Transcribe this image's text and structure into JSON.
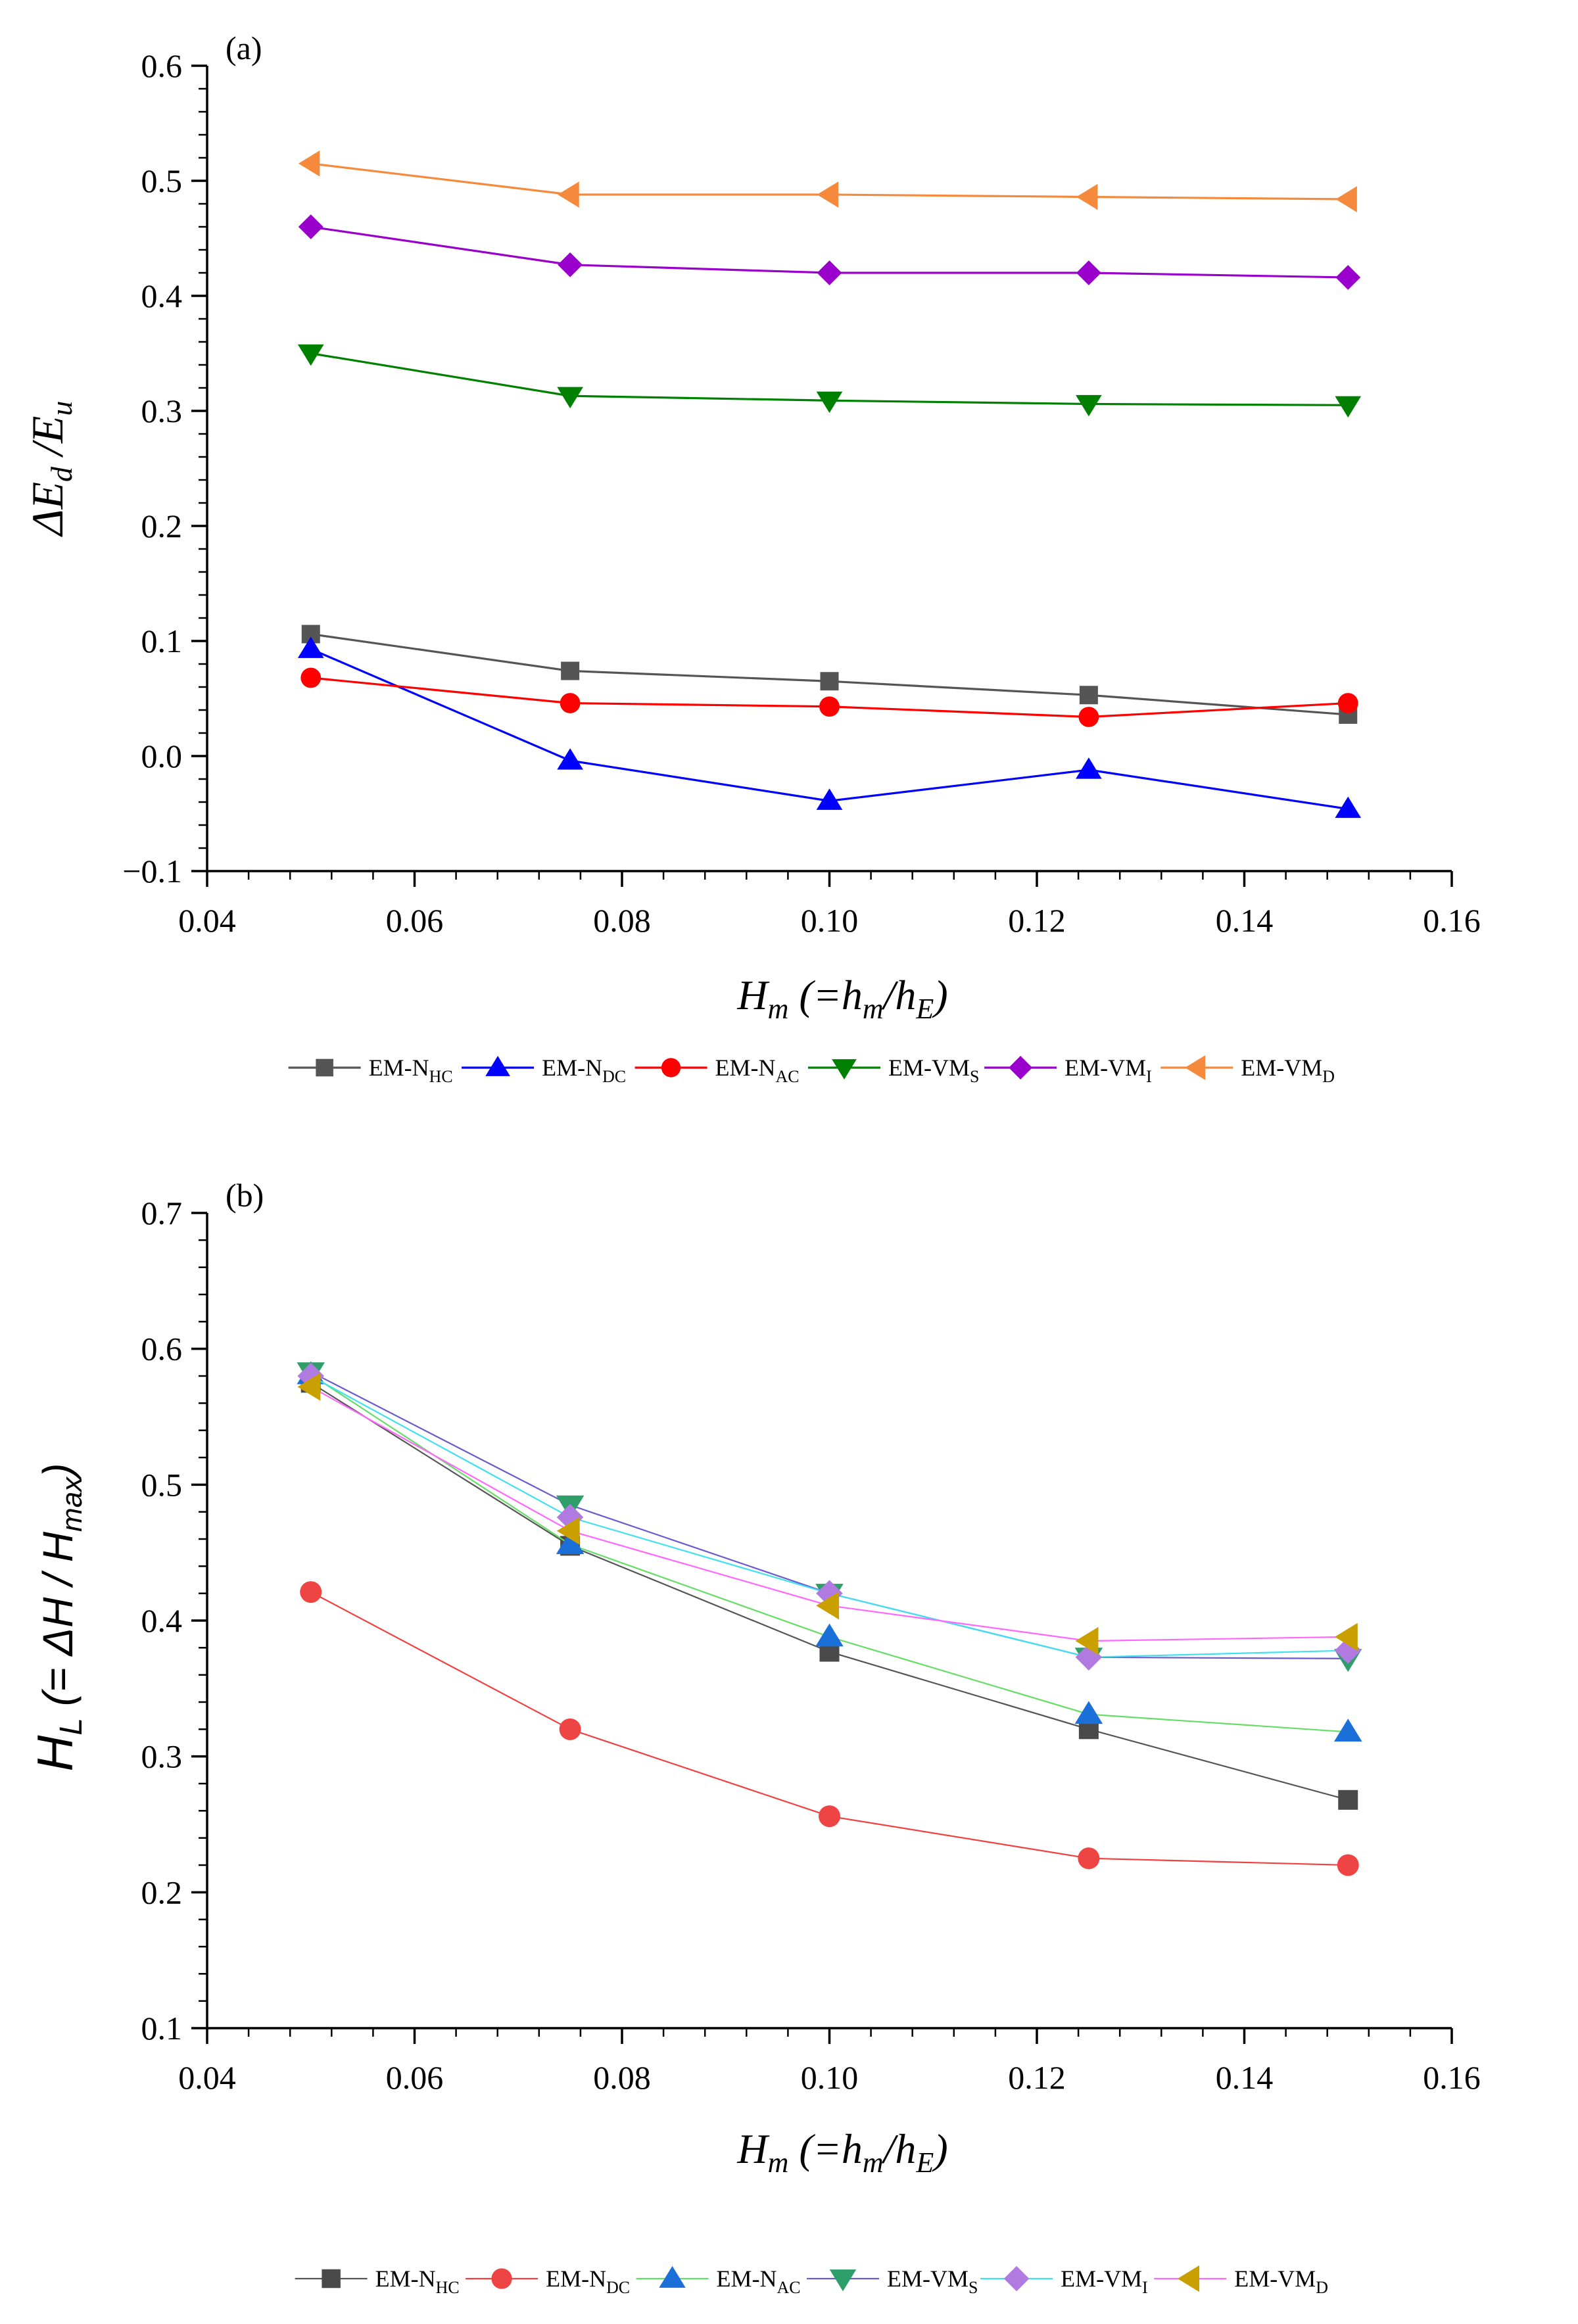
{
  "chart_data": [
    {
      "panel": "(a)",
      "type": "line",
      "x": [
        0.05,
        0.075,
        0.1,
        0.125,
        0.15
      ],
      "xlim": [
        0.04,
        0.16
      ],
      "ylim": [
        -0.1,
        0.6
      ],
      "xticks": [
        "0.04",
        "0.06",
        "0.08",
        "0.10",
        "0.12",
        "0.14",
        "0.16"
      ],
      "yticks": [
        "−0.1",
        "0.0",
        "0.1",
        "0.2",
        "0.3",
        "0.4",
        "0.5",
        "0.6"
      ],
      "ylabel": {
        "prefix": "ΔE",
        "sub1": "d",
        "mid": " /E",
        "sub2": "u"
      },
      "xlabel": {
        "prefix": "H",
        "sub1": "m",
        "mid1": " (=h",
        "sub2": "m",
        "mid2": "/h",
        "sub3": "E",
        "end": ")"
      },
      "series": [
        {
          "name": "EM-N",
          "sub": "HC",
          "color": "#555555",
          "marker": "square",
          "values": [
            0.106,
            0.074,
            0.065,
            0.053,
            0.036
          ]
        },
        {
          "name": "EM-N",
          "sub": "DC",
          "color": "#0000ff",
          "marker": "triangle-up",
          "values": [
            0.093,
            -0.004,
            -0.039,
            -0.012,
            -0.046
          ]
        },
        {
          "name": "EM-N",
          "sub": "AC",
          "color": "#ff0000",
          "marker": "circle",
          "values": [
            0.068,
            0.046,
            0.043,
            0.034,
            0.046
          ]
        },
        {
          "name": "EM-VM",
          "sub": "S",
          "color": "#008000",
          "marker": "triangle-down",
          "values": [
            0.35,
            0.313,
            0.309,
            0.306,
            0.305
          ]
        },
        {
          "name": "EM-VM",
          "sub": "I",
          "color": "#9900cc",
          "marker": "diamond",
          "values": [
            0.46,
            0.427,
            0.42,
            0.42,
            0.416
          ]
        },
        {
          "name": "EM-VM",
          "sub": "D",
          "color": "#f58a3c",
          "marker": "triangle-left",
          "values": [
            0.515,
            0.488,
            0.488,
            0.486,
            0.484
          ]
        }
      ]
    },
    {
      "panel": "(b)",
      "type": "line",
      "x": [
        0.05,
        0.075,
        0.1,
        0.125,
        0.15
      ],
      "xlim": [
        0.04,
        0.16
      ],
      "ylim": [
        0.1,
        0.7
      ],
      "xticks": [
        "0.04",
        "0.06",
        "0.08",
        "0.10",
        "0.12",
        "0.14",
        "0.16"
      ],
      "yticks": [
        "0.1",
        "0.2",
        "0.3",
        "0.4",
        "0.5",
        "0.6",
        "0.7"
      ],
      "ylabel": {
        "prefix": "H",
        "sub1": "L",
        "mid": " (= ΔH / H",
        "sub2": "max",
        "end": ")"
      },
      "xlabel": {
        "prefix": "H",
        "sub1": "m",
        "mid1": " (=h",
        "sub2": "m",
        "mid2": "/h",
        "sub3": "E",
        "end": ")"
      },
      "series": [
        {
          "name": "EM-N",
          "sub": "HC",
          "color": "#555555",
          "marker_color": "#4a4a4a",
          "marker": "square",
          "values": [
            0.575,
            0.455,
            0.377,
            0.32,
            0.268
          ]
        },
        {
          "name": "EM-N",
          "sub": "DC",
          "color": "#f04040",
          "marker_color": "#ee4444",
          "marker": "circle",
          "values": [
            0.421,
            0.32,
            0.256,
            0.225,
            0.22
          ]
        },
        {
          "name": "EM-N",
          "sub": "AC",
          "color": "#66dd66",
          "marker_color": "#1a6fd9",
          "marker": "triangle-up",
          "values": [
            0.581,
            0.456,
            0.388,
            0.331,
            0.318
          ]
        },
        {
          "name": "EM-VM",
          "sub": "S",
          "color": "#6a5acd",
          "marker_color": "#2e9e6a",
          "marker": "triangle-down",
          "values": [
            0.583,
            0.485,
            0.42,
            0.373,
            0.372
          ]
        },
        {
          "name": "EM-VM",
          "sub": "I",
          "color": "#40e0f0",
          "marker_color": "#b07ae0",
          "marker": "diamond",
          "values": [
            0.58,
            0.476,
            0.42,
            0.373,
            0.378
          ]
        },
        {
          "name": "EM-VM",
          "sub": "D",
          "color": "#ff66ff",
          "marker_color": "#c9a000",
          "marker": "triangle-left",
          "values": [
            0.572,
            0.466,
            0.411,
            0.385,
            0.388
          ]
        }
      ]
    }
  ]
}
